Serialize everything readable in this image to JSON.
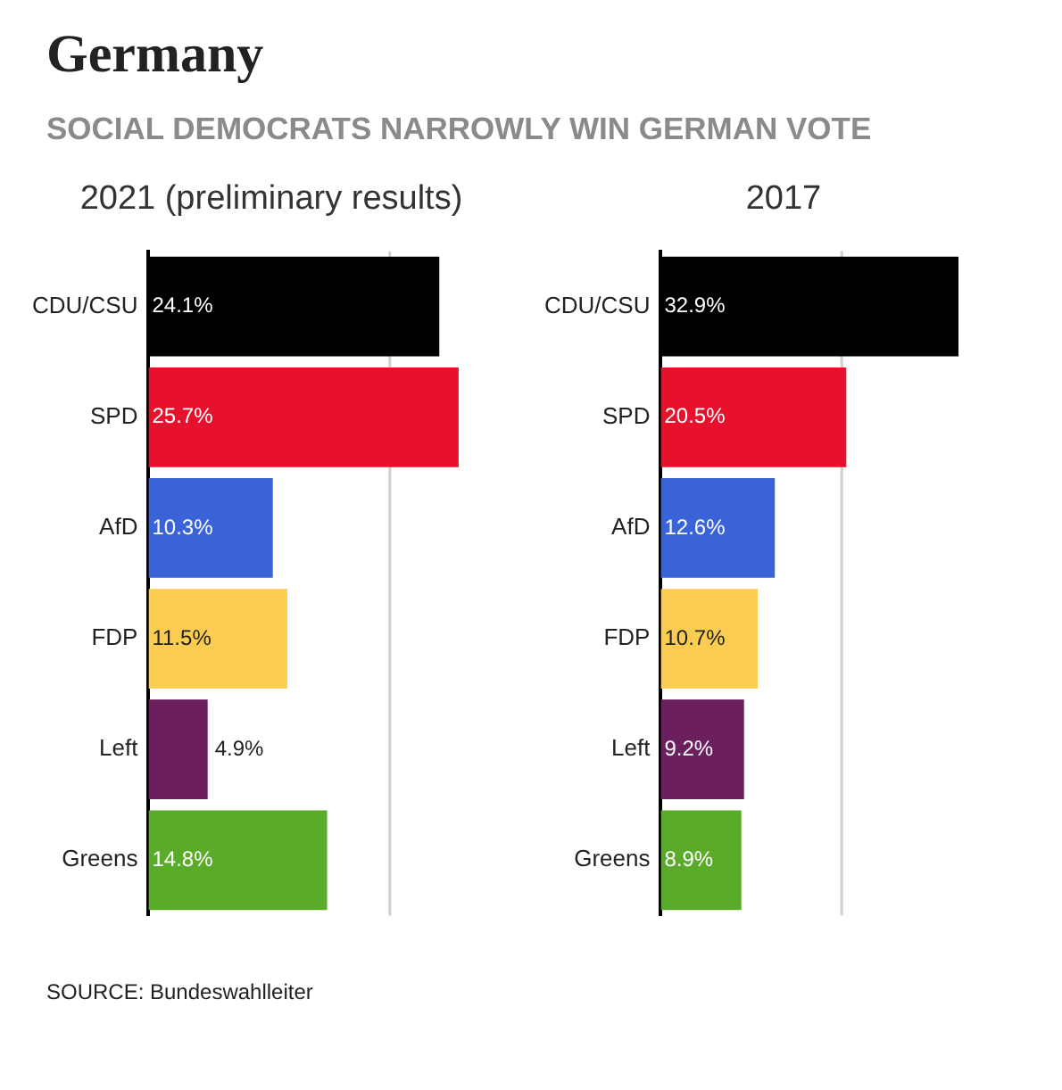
{
  "chart_data": [
    {
      "type": "bar",
      "orientation": "horizontal",
      "title": "Germany",
      "subtitle": "SOCIAL DEMOCRATS NARROWLY WIN GERMAN VOTE",
      "xlabel": "2021 (preliminary results)",
      "categories": [
        "CDU/CSU",
        "SPD",
        "AfD",
        "FDP",
        "Left",
        "Greens"
      ],
      "values": [
        24.1,
        25.7,
        10.3,
        11.5,
        4.9,
        14.8
      ],
      "value_labels": [
        "24.1%",
        "25.7%",
        "10.3%",
        "11.5%",
        "4.9%",
        "14.8%"
      ],
      "colors": [
        "#000000",
        "#e8112d",
        "#3a63d8",
        "#fbcc52",
        "#6b1f5e",
        "#5aab2a"
      ],
      "ref_lines": [
        {
          "axis": "x",
          "value": 20,
          "color": "#d0d0d0"
        }
      ],
      "tick_labels": "y",
      "legend": false
    },
    {
      "type": "bar",
      "orientation": "horizontal",
      "xlabel": "2017",
      "categories": [
        "CDU/CSU",
        "SPD",
        "AfD",
        "FDP",
        "Left",
        "Greens"
      ],
      "values": [
        32.9,
        20.5,
        12.6,
        10.7,
        9.2,
        8.9
      ],
      "value_labels": [
        "32.9%",
        "20.5%",
        "12.6%",
        "10.7%",
        "9.2%",
        "8.9%"
      ],
      "colors": [
        "#000000",
        "#e8112d",
        "#3a63d8",
        "#fbcc52",
        "#6b1f5e",
        "#5aab2a"
      ],
      "ref_lines": [
        {
          "axis": "x",
          "value": 20,
          "color": "#d0d0d0"
        }
      ],
      "tick_labels": "y",
      "legend": false,
      "annotations": [
        "SOURCE: Bundeswahlleiter"
      ]
    }
  ]
}
